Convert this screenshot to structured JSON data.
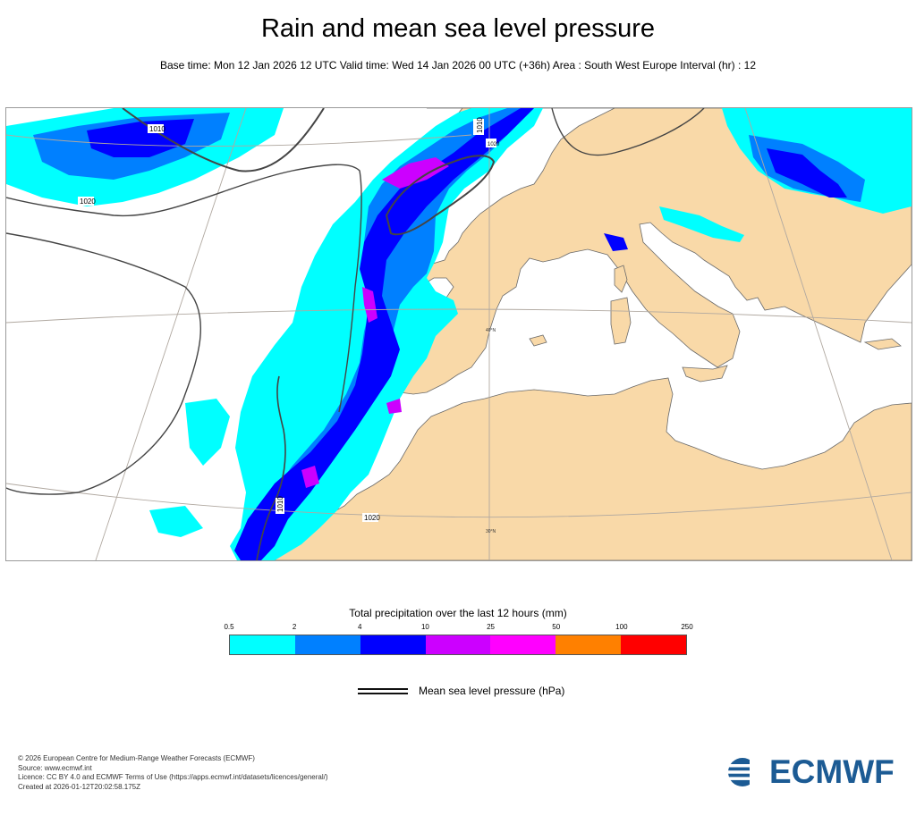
{
  "header": {
    "title": "Rain and mean sea level pressure",
    "subtitle": "Base time: Mon 12 Jan 2026 12 UTC Valid time: Wed 14 Jan 2026 00 UTC (+36h) Area : South West Europe Interval (hr) : 12"
  },
  "map": {
    "isobar_labels": [
      "1010",
      "1020",
      "1010",
      "1020",
      "1010",
      "1020"
    ],
    "graticule_labels": [
      "40°N",
      "30°N"
    ],
    "colors": {
      "land": "#f9d9a8",
      "sea": "#ffffff",
      "isobar": "#444444"
    }
  },
  "legend": {
    "precip_title": "Total precipitation over the last 12 hours (mm)",
    "precip_ticks": [
      "0.5",
      "2",
      "4",
      "10",
      "25",
      "50",
      "100",
      "250"
    ],
    "precip_colors": [
      "#00ffff",
      "#0080ff",
      "#0000ff",
      "#cc00ff",
      "#ff00ff",
      "#ff8000",
      "#ff0000"
    ],
    "mslp_label": "Mean sea level pressure (hPa)"
  },
  "footer": {
    "lines": [
      "© 2026 European Centre for Medium-Range Weather Forecasts (ECMWF)",
      "Source: www.ecmwf.int",
      "Licence: CC BY 4.0 and ECMWF Terms of Use (https://apps.ecmwf.int/datasets/licences/general/)",
      "Created at 2026-01-12T20:02:58.175Z"
    ],
    "logo_text": "ECMWF",
    "logo_color": "#1c5b94"
  }
}
